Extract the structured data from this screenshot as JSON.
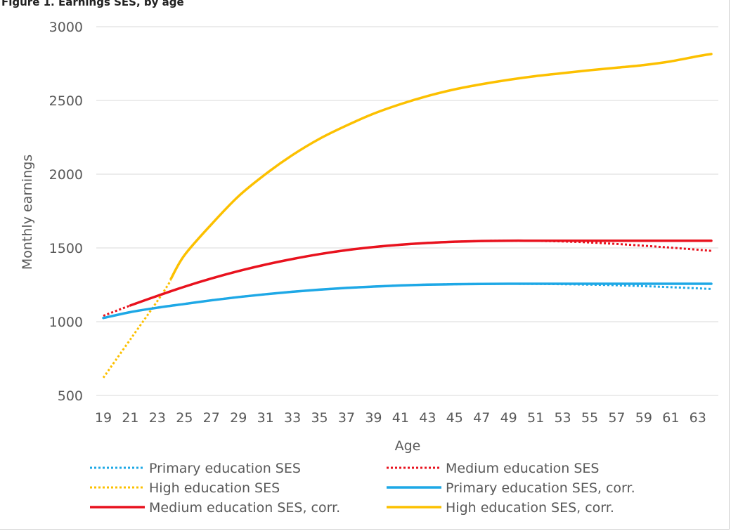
{
  "caption": "Figure 1. Earnings SES, by age",
  "chart_data": {
    "type": "line",
    "title": "",
    "xlabel": "Age",
    "ylabel": "Monthly earnings",
    "ylim": [
      500,
      3000
    ],
    "yticks": [
      500,
      1000,
      1500,
      2000,
      2500,
      3000
    ],
    "xticks": [
      19,
      21,
      23,
      25,
      27,
      29,
      31,
      33,
      35,
      37,
      39,
      41,
      43,
      45,
      47,
      49,
      51,
      53,
      55,
      57,
      59,
      61,
      63
    ],
    "xlim": [
      19,
      64
    ],
    "grid": "horizontal",
    "legend_position": "bottom",
    "series": [
      {
        "name": "Primary education SES",
        "color": "#1ea8e6",
        "style": "dotted",
        "x": [
          19,
          21,
          23,
          25,
          27,
          29,
          31,
          33,
          35,
          37,
          39,
          41,
          43,
          45,
          47,
          49,
          51,
          53,
          55,
          57,
          59,
          61,
          63,
          64
        ],
        "y": [
          1025,
          1065,
          1095,
          1120,
          1145,
          1167,
          1186,
          1203,
          1217,
          1229,
          1238,
          1246,
          1251,
          1254,
          1256,
          1257,
          1256,
          1254,
          1251,
          1247,
          1241,
          1234,
          1226,
          1222
        ]
      },
      {
        "name": "Medium education SES",
        "color": "#e8121e",
        "style": "dotted",
        "x": [
          19,
          21,
          23,
          25,
          27,
          29,
          31,
          33,
          35,
          37,
          39,
          41,
          43,
          45,
          47,
          49,
          51,
          53,
          55,
          57,
          59,
          61,
          63,
          64
        ],
        "y": [
          1040,
          1110,
          1175,
          1237,
          1293,
          1343,
          1387,
          1425,
          1458,
          1485,
          1506,
          1522,
          1534,
          1542,
          1547,
          1549,
          1548,
          1544,
          1537,
          1527,
          1515,
          1502,
          1488,
          1480
        ]
      },
      {
        "name": "High education SES",
        "color": "#fcc000",
        "style": "dotted",
        "x": [
          19,
          21,
          23,
          24
        ],
        "y": [
          620,
          880,
          1140,
          1280
        ]
      },
      {
        "name": "Primary education SES, corr.",
        "color": "#1ea8e6",
        "style": "solid",
        "x": [
          19,
          21,
          23,
          25,
          27,
          29,
          31,
          33,
          35,
          37,
          39,
          41,
          43,
          45,
          47,
          49,
          51,
          53,
          55,
          57,
          59,
          61,
          63,
          64
        ],
        "y": [
          1025,
          1065,
          1095,
          1120,
          1145,
          1167,
          1186,
          1203,
          1217,
          1229,
          1238,
          1246,
          1251,
          1254,
          1256,
          1257,
          1257,
          1257,
          1257,
          1257,
          1257,
          1257,
          1257,
          1257
        ]
      },
      {
        "name": "Medium education SES, corr.",
        "color": "#e8121e",
        "style": "solid",
        "x": [
          21,
          23,
          25,
          27,
          29,
          31,
          33,
          35,
          37,
          39,
          41,
          43,
          45,
          47,
          49,
          51,
          53,
          55,
          57,
          59,
          61,
          63,
          64
        ],
        "y": [
          1110,
          1175,
          1237,
          1293,
          1343,
          1387,
          1425,
          1458,
          1485,
          1506,
          1522,
          1534,
          1542,
          1547,
          1549,
          1549,
          1549,
          1549,
          1549,
          1549,
          1549,
          1549,
          1549
        ]
      },
      {
        "name": "High education SES, corr.",
        "color": "#fcc000",
        "style": "solid",
        "x": [
          24,
          25,
          27,
          29,
          31,
          33,
          35,
          37,
          39,
          41,
          43,
          45,
          47,
          49,
          51,
          53,
          55,
          57,
          59,
          61,
          63,
          64
        ],
        "y": [
          1290,
          1450,
          1660,
          1850,
          2000,
          2130,
          2240,
          2330,
          2410,
          2475,
          2530,
          2575,
          2610,
          2640,
          2665,
          2685,
          2705,
          2722,
          2740,
          2765,
          2800,
          2815
        ]
      }
    ]
  }
}
